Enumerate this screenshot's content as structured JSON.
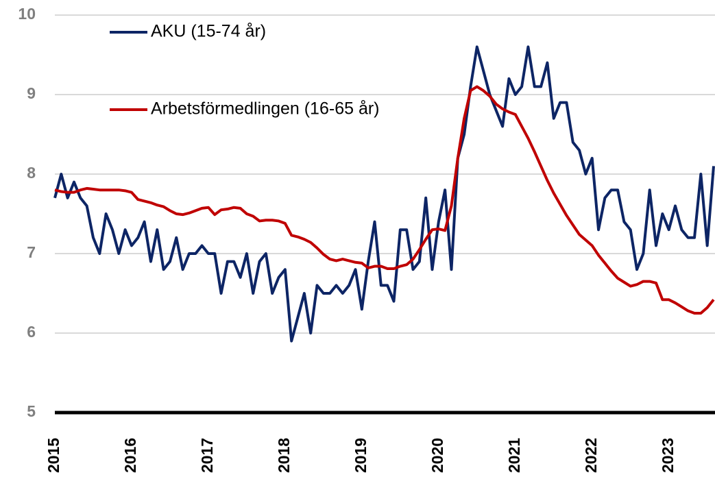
{
  "chart_data": {
    "type": "line",
    "categories": [
      "2015",
      null,
      null,
      null,
      null,
      null,
      null,
      null,
      null,
      null,
      null,
      null,
      "2016",
      null,
      null,
      null,
      null,
      null,
      null,
      null,
      null,
      null,
      null,
      null,
      "2017",
      null,
      null,
      null,
      null,
      null,
      null,
      null,
      null,
      null,
      null,
      null,
      "2018",
      null,
      null,
      null,
      null,
      null,
      null,
      null,
      null,
      null,
      null,
      null,
      "2019",
      null,
      null,
      null,
      null,
      null,
      null,
      null,
      null,
      null,
      null,
      null,
      "2020",
      null,
      null,
      null,
      null,
      null,
      null,
      null,
      null,
      null,
      null,
      null,
      "2021",
      null,
      null,
      null,
      null,
      null,
      null,
      null,
      null,
      null,
      null,
      null,
      "2022",
      null,
      null,
      null,
      null,
      null,
      null,
      null,
      null,
      null,
      null,
      null,
      "2023",
      null,
      null,
      null,
      null,
      null,
      null,
      null
    ],
    "series": [
      {
        "name": "AKU (15-74 år)",
        "color": "#0d2565",
        "values": [
          7.7,
          8.0,
          7.7,
          7.9,
          7.7,
          7.6,
          7.2,
          7.0,
          7.5,
          7.3,
          7.0,
          7.3,
          7.1,
          7.2,
          7.4,
          6.9,
          7.3,
          6.8,
          6.9,
          7.2,
          6.8,
          7.0,
          7.0,
          7.1,
          7.0,
          7.0,
          6.5,
          6.9,
          6.9,
          6.7,
          7.0,
          6.5,
          6.9,
          7.0,
          6.5,
          6.7,
          6.8,
          5.9,
          6.2,
          6.5,
          6.0,
          6.6,
          6.5,
          6.5,
          6.6,
          6.5,
          6.6,
          6.8,
          6.3,
          6.9,
          7.4,
          6.6,
          6.6,
          6.4,
          7.3,
          7.3,
          6.8,
          6.9,
          7.7,
          6.8,
          7.4,
          7.8,
          6.8,
          8.2,
          8.5,
          9.1,
          9.6,
          9.3,
          9.0,
          8.8,
          8.6,
          9.2,
          9.0,
          9.1,
          9.6,
          9.1,
          9.1,
          9.4,
          8.7,
          8.9,
          8.9,
          8.4,
          8.3,
          8.0,
          8.2,
          7.3,
          7.7,
          7.8,
          7.8,
          7.4,
          7.3,
          6.8,
          7.0,
          7.8,
          7.1,
          7.5,
          7.3,
          7.6,
          7.3,
          7.2,
          7.2,
          8.0,
          7.1,
          8.1
        ]
      },
      {
        "name": "Arbetsförmedlingen (16-65 år)",
        "color": "#c00000",
        "values": [
          7.8,
          7.78,
          7.77,
          7.77,
          7.8,
          7.82,
          7.81,
          7.8,
          7.8,
          7.8,
          7.8,
          7.79,
          7.77,
          7.68,
          7.66,
          7.64,
          7.61,
          7.59,
          7.54,
          7.5,
          7.49,
          7.51,
          7.54,
          7.57,
          7.58,
          7.49,
          7.55,
          7.56,
          7.58,
          7.57,
          7.5,
          7.47,
          7.41,
          7.42,
          7.42,
          7.41,
          7.38,
          7.23,
          7.21,
          7.18,
          7.14,
          7.07,
          6.99,
          6.93,
          6.91,
          6.93,
          6.91,
          6.89,
          6.88,
          6.82,
          6.84,
          6.84,
          6.81,
          6.81,
          6.84,
          6.86,
          6.93,
          7.05,
          7.18,
          7.3,
          7.31,
          7.29,
          7.6,
          8.2,
          8.7,
          9.05,
          9.1,
          9.05,
          8.98,
          8.88,
          8.82,
          8.78,
          8.75,
          8.6,
          8.45,
          8.28,
          8.1,
          7.92,
          7.76,
          7.62,
          7.48,
          7.36,
          7.24,
          7.17,
          7.1,
          6.98,
          6.88,
          6.78,
          6.69,
          6.64,
          6.59,
          6.61,
          6.65,
          6.65,
          6.63,
          6.42,
          6.42,
          6.38,
          6.33,
          6.28,
          6.25,
          6.25,
          6.32,
          6.42
        ]
      }
    ],
    "ylim": [
      5,
      10
    ],
    "yticks": [
      5,
      6,
      7,
      8,
      9,
      10
    ],
    "grid": true,
    "legend": "upper left"
  }
}
